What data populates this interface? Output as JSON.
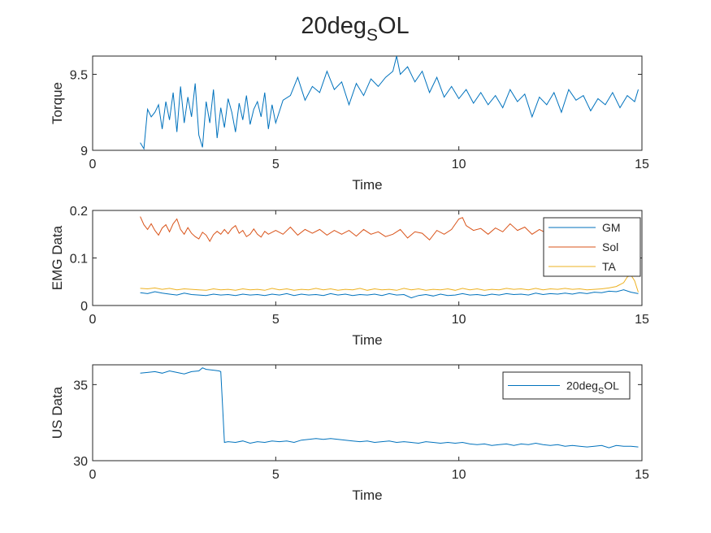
{
  "figure_title": {
    "main": "20deg",
    "sub": "S",
    "tail": "OL"
  },
  "colors": {
    "blue": "#0072BD",
    "red": "#D95319",
    "yellow": "#EDB120",
    "axis": "#262626",
    "bg": "#ffffff"
  },
  "chart_data": [
    {
      "type": "line",
      "xlabel": "Time",
      "ylabel": "Torque",
      "xlim": [
        0,
        15
      ],
      "ylim": [
        9,
        9.62
      ],
      "xticks": [
        0,
        5,
        10,
        15
      ],
      "yticks": [
        9,
        9.5
      ],
      "xtick_labels": [
        "0",
        "5",
        "10",
        "15"
      ],
      "ytick_labels": [
        "9",
        "9.5"
      ],
      "grid": false,
      "series": [
        {
          "color": "#0072BD",
          "x": [
            1.3,
            1.4,
            1.5,
            1.6,
            1.7,
            1.8,
            1.9,
            2.0,
            2.1,
            2.2,
            2.3,
            2.4,
            2.5,
            2.6,
            2.7,
            2.8,
            2.9,
            3.0,
            3.1,
            3.2,
            3.3,
            3.4,
            3.5,
            3.6,
            3.7,
            3.8,
            3.9,
            4.0,
            4.1,
            4.2,
            4.3,
            4.4,
            4.5,
            4.6,
            4.7,
            4.8,
            4.9,
            5.0,
            5.2,
            5.4,
            5.6,
            5.8,
            6.0,
            6.2,
            6.4,
            6.6,
            6.8,
            7.0,
            7.2,
            7.4,
            7.6,
            7.8,
            8.0,
            8.2,
            8.3,
            8.4,
            8.6,
            8.8,
            9.0,
            9.2,
            9.4,
            9.6,
            9.8,
            10.0,
            10.2,
            10.4,
            10.6,
            10.8,
            11.0,
            11.2,
            11.4,
            11.6,
            11.8,
            12.0,
            12.2,
            12.4,
            12.6,
            12.8,
            13.0,
            13.2,
            13.4,
            13.6,
            13.8,
            14.0,
            14.2,
            14.4,
            14.6,
            14.8,
            14.9
          ],
          "y": [
            9.05,
            9.01,
            9.27,
            9.22,
            9.25,
            9.3,
            9.14,
            9.32,
            9.2,
            9.38,
            9.12,
            9.42,
            9.18,
            9.35,
            9.22,
            9.44,
            9.1,
            9.02,
            9.32,
            9.18,
            9.4,
            9.08,
            9.28,
            9.15,
            9.34,
            9.25,
            9.12,
            9.31,
            9.2,
            9.36,
            9.17,
            9.27,
            9.32,
            9.22,
            9.38,
            9.14,
            9.3,
            9.18,
            9.33,
            9.36,
            9.48,
            9.33,
            9.42,
            9.38,
            9.52,
            9.4,
            9.45,
            9.3,
            9.44,
            9.36,
            9.47,
            9.42,
            9.48,
            9.52,
            9.62,
            9.5,
            9.55,
            9.45,
            9.52,
            9.38,
            9.48,
            9.35,
            9.42,
            9.34,
            9.4,
            9.31,
            9.38,
            9.3,
            9.36,
            9.28,
            9.4,
            9.32,
            9.37,
            9.22,
            9.35,
            9.3,
            9.38,
            9.25,
            9.4,
            9.33,
            9.36,
            9.26,
            9.34,
            9.3,
            9.38,
            9.28,
            9.36,
            9.32,
            9.4
          ]
        }
      ]
    },
    {
      "type": "line",
      "xlabel": "Time",
      "ylabel": "EMG Data",
      "xlim": [
        0,
        15
      ],
      "ylim": [
        0,
        0.2
      ],
      "xticks": [
        0,
        5,
        10,
        15
      ],
      "yticks": [
        0,
        0.1,
        0.2
      ],
      "xtick_labels": [
        "0",
        "5",
        "10",
        "15"
      ],
      "ytick_labels": [
        "0",
        "0.1",
        "0.2"
      ],
      "grid": false,
      "legend": "top-right",
      "series": [
        {
          "name": "GM",
          "color": "#0072BD",
          "x": [
            1.3,
            1.5,
            1.7,
            1.9,
            2.1,
            2.3,
            2.5,
            2.7,
            2.9,
            3.1,
            3.3,
            3.5,
            3.7,
            3.9,
            4.1,
            4.3,
            4.5,
            4.7,
            4.9,
            5.1,
            5.3,
            5.5,
            5.7,
            5.9,
            6.1,
            6.3,
            6.5,
            6.7,
            6.9,
            7.1,
            7.3,
            7.5,
            7.7,
            7.9,
            8.1,
            8.3,
            8.5,
            8.7,
            8.9,
            9.1,
            9.3,
            9.5,
            9.7,
            9.9,
            10.1,
            10.3,
            10.5,
            10.7,
            10.9,
            11.1,
            11.3,
            11.5,
            11.7,
            11.9,
            12.1,
            12.3,
            12.5,
            12.7,
            12.9,
            13.1,
            13.3,
            13.5,
            13.7,
            13.9,
            14.1,
            14.3,
            14.5,
            14.7,
            14.9
          ],
          "y": [
            0.027,
            0.025,
            0.029,
            0.026,
            0.024,
            0.022,
            0.026,
            0.023,
            0.022,
            0.021,
            0.024,
            0.022,
            0.023,
            0.021,
            0.024,
            0.022,
            0.023,
            0.021,
            0.024,
            0.022,
            0.025,
            0.021,
            0.024,
            0.022,
            0.023,
            0.021,
            0.025,
            0.022,
            0.024,
            0.021,
            0.023,
            0.022,
            0.024,
            0.021,
            0.025,
            0.022,
            0.023,
            0.016,
            0.021,
            0.023,
            0.02,
            0.024,
            0.021,
            0.022,
            0.025,
            0.022,
            0.023,
            0.021,
            0.024,
            0.022,
            0.025,
            0.023,
            0.024,
            0.022,
            0.026,
            0.023,
            0.025,
            0.024,
            0.026,
            0.024,
            0.027,
            0.025,
            0.028,
            0.027,
            0.03,
            0.029,
            0.033,
            0.028,
            0.025
          ]
        },
        {
          "name": "Sol",
          "color": "#D95319",
          "x": [
            1.3,
            1.4,
            1.5,
            1.6,
            1.7,
            1.8,
            1.9,
            2.0,
            2.1,
            2.2,
            2.3,
            2.4,
            2.5,
            2.6,
            2.7,
            2.8,
            2.9,
            3.0,
            3.1,
            3.2,
            3.3,
            3.4,
            3.5,
            3.6,
            3.7,
            3.8,
            3.9,
            4.0,
            4.1,
            4.2,
            4.3,
            4.4,
            4.5,
            4.6,
            4.7,
            4.8,
            5.0,
            5.2,
            5.4,
            5.6,
            5.8,
            6.0,
            6.2,
            6.4,
            6.6,
            6.8,
            7.0,
            7.2,
            7.4,
            7.6,
            7.8,
            8.0,
            8.2,
            8.4,
            8.6,
            8.8,
            9.0,
            9.2,
            9.4,
            9.6,
            9.8,
            10.0,
            10.1,
            10.2,
            10.4,
            10.6,
            10.8,
            11.0,
            11.2,
            11.4,
            11.6,
            11.8,
            12.0,
            12.2,
            12.4,
            12.6,
            12.8,
            13.0,
            13.2,
            13.4,
            13.6,
            13.8,
            14.0,
            14.2,
            14.4,
            14.6,
            14.7,
            14.8,
            14.9
          ],
          "y": [
            0.187,
            0.17,
            0.16,
            0.172,
            0.158,
            0.148,
            0.163,
            0.17,
            0.155,
            0.172,
            0.182,
            0.16,
            0.15,
            0.164,
            0.152,
            0.145,
            0.14,
            0.154,
            0.148,
            0.135,
            0.149,
            0.156,
            0.15,
            0.16,
            0.151,
            0.162,
            0.168,
            0.152,
            0.158,
            0.145,
            0.15,
            0.161,
            0.15,
            0.144,
            0.156,
            0.15,
            0.158,
            0.15,
            0.165,
            0.148,
            0.16,
            0.152,
            0.16,
            0.148,
            0.158,
            0.15,
            0.158,
            0.146,
            0.16,
            0.15,
            0.155,
            0.145,
            0.15,
            0.16,
            0.142,
            0.155,
            0.152,
            0.138,
            0.158,
            0.15,
            0.16,
            0.182,
            0.185,
            0.168,
            0.158,
            0.162,
            0.15,
            0.163,
            0.155,
            0.172,
            0.158,
            0.165,
            0.15,
            0.16,
            0.152,
            0.158,
            0.165,
            0.15,
            0.156,
            0.16,
            0.15,
            0.158,
            0.165,
            0.148,
            0.16,
            0.152,
            0.16,
            0.145,
            0.142
          ]
        },
        {
          "name": "TA",
          "color": "#EDB120",
          "x": [
            1.3,
            1.5,
            1.7,
            1.9,
            2.1,
            2.3,
            2.5,
            2.7,
            2.9,
            3.1,
            3.3,
            3.5,
            3.7,
            3.9,
            4.1,
            4.3,
            4.5,
            4.7,
            4.9,
            5.1,
            5.3,
            5.5,
            5.7,
            5.9,
            6.1,
            6.3,
            6.5,
            6.7,
            6.9,
            7.1,
            7.3,
            7.5,
            7.7,
            7.9,
            8.1,
            8.3,
            8.5,
            8.7,
            8.9,
            9.1,
            9.3,
            9.5,
            9.7,
            9.9,
            10.1,
            10.3,
            10.5,
            10.7,
            10.9,
            11.1,
            11.3,
            11.5,
            11.7,
            11.9,
            12.1,
            12.3,
            12.5,
            12.7,
            12.9,
            13.1,
            13.3,
            13.5,
            13.7,
            13.9,
            14.1,
            14.3,
            14.5,
            14.6,
            14.7,
            14.8,
            14.9
          ],
          "y": [
            0.036,
            0.035,
            0.037,
            0.034,
            0.036,
            0.033,
            0.035,
            0.034,
            0.033,
            0.032,
            0.035,
            0.033,
            0.034,
            0.032,
            0.035,
            0.033,
            0.034,
            0.032,
            0.036,
            0.033,
            0.035,
            0.032,
            0.034,
            0.033,
            0.036,
            0.033,
            0.035,
            0.032,
            0.034,
            0.033,
            0.036,
            0.032,
            0.035,
            0.033,
            0.034,
            0.032,
            0.036,
            0.033,
            0.035,
            0.032,
            0.034,
            0.033,
            0.035,
            0.032,
            0.036,
            0.033,
            0.035,
            0.032,
            0.034,
            0.033,
            0.036,
            0.034,
            0.035,
            0.033,
            0.036,
            0.033,
            0.035,
            0.034,
            0.036,
            0.034,
            0.035,
            0.033,
            0.034,
            0.035,
            0.037,
            0.04,
            0.048,
            0.06,
            0.064,
            0.052,
            0.028
          ]
        }
      ]
    },
    {
      "type": "line",
      "xlabel": "Time",
      "ylabel": "US Data",
      "xlim": [
        0,
        15
      ],
      "ylim": [
        30,
        36.3
      ],
      "xticks": [
        0,
        5,
        10,
        15
      ],
      "yticks": [
        30,
        35
      ],
      "xtick_labels": [
        "0",
        "5",
        "10",
        "15"
      ],
      "ytick_labels": [
        "30",
        "35"
      ],
      "grid": false,
      "legend": "top-right",
      "series": [
        {
          "name": "20degSOL",
          "name_parts": {
            "main": "20deg",
            "sub": "S",
            "tail": "OL"
          },
          "color": "#0072BD",
          "x": [
            1.3,
            1.5,
            1.7,
            1.9,
            2.1,
            2.3,
            2.5,
            2.7,
            2.9,
            3.0,
            3.1,
            3.3,
            3.45,
            3.5,
            3.55,
            3.6,
            3.7,
            3.9,
            4.1,
            4.3,
            4.5,
            4.7,
            4.9,
            5.1,
            5.3,
            5.5,
            5.7,
            5.9,
            6.1,
            6.3,
            6.5,
            6.7,
            6.9,
            7.1,
            7.3,
            7.5,
            7.7,
            7.9,
            8.1,
            8.3,
            8.5,
            8.7,
            8.9,
            9.1,
            9.3,
            9.5,
            9.7,
            9.9,
            10.1,
            10.3,
            10.5,
            10.7,
            10.9,
            11.1,
            11.3,
            11.5,
            11.7,
            11.9,
            12.1,
            12.3,
            12.5,
            12.7,
            12.9,
            13.1,
            13.3,
            13.5,
            13.7,
            13.9,
            14.1,
            14.3,
            14.5,
            14.7,
            14.9
          ],
          "y": [
            35.75,
            35.8,
            35.85,
            35.75,
            35.9,
            35.8,
            35.7,
            35.85,
            35.9,
            36.1,
            36.0,
            35.95,
            35.9,
            35.85,
            33.5,
            31.2,
            31.25,
            31.2,
            31.3,
            31.15,
            31.25,
            31.2,
            31.3,
            31.25,
            31.3,
            31.2,
            31.35,
            31.4,
            31.45,
            31.4,
            31.45,
            31.4,
            31.35,
            31.3,
            31.25,
            31.3,
            31.2,
            31.25,
            31.3,
            31.2,
            31.25,
            31.2,
            31.15,
            31.25,
            31.2,
            31.15,
            31.2,
            31.15,
            31.2,
            31.1,
            31.05,
            31.1,
            31.0,
            31.05,
            31.1,
            31.0,
            31.1,
            31.05,
            31.15,
            31.05,
            31.0,
            31.05,
            30.95,
            31.0,
            30.95,
            30.9,
            30.95,
            31.0,
            30.85,
            31.0,
            30.95,
            30.95,
            30.9
          ]
        }
      ]
    }
  ]
}
